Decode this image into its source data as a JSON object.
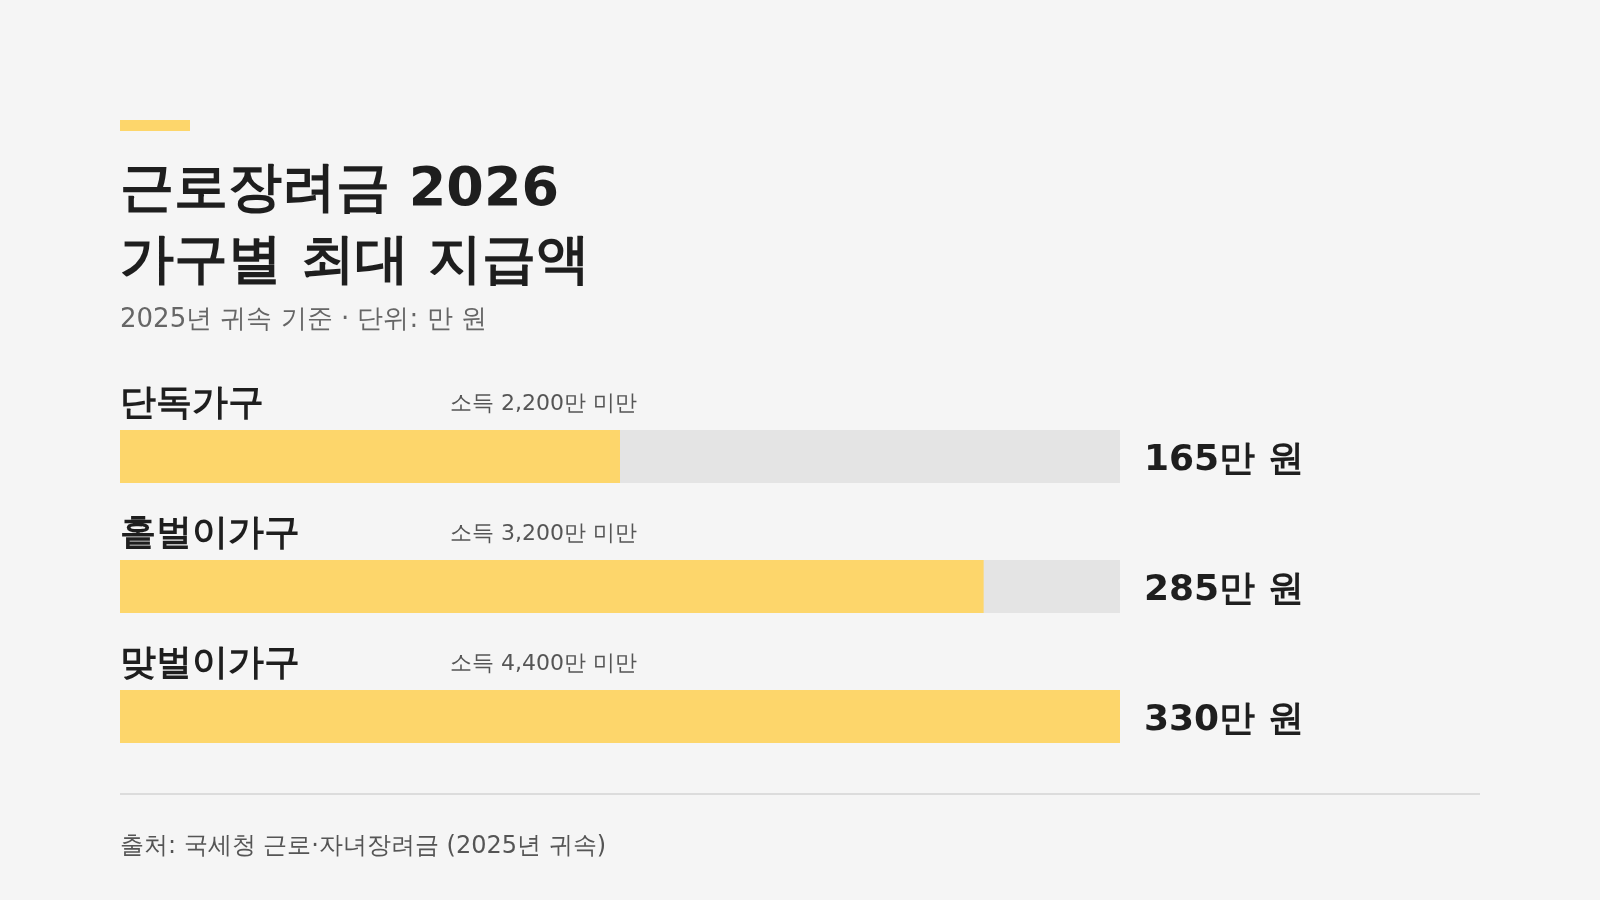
{
  "chart_data": {
    "type": "bar",
    "orientation": "horizontal",
    "title": "근로장려금 2026\n가구별 최대 지급액",
    "subtitle": "2025년 귀속 기준 · 단위: 만 원",
    "categories": [
      "단독가구",
      "홑벌이가구",
      "맞벌이가구"
    ],
    "values": [
      165,
      285,
      330
    ],
    "color": "#fdd66b",
    "value_labels": [
      "165만 원",
      "285만 원",
      "330만 원"
    ],
    "annotations": [
      "소득 2,200만 미만",
      "소득 3,200만 미만",
      "소득 4,400만 미만",
      "출처: 국세청 근로·자녀장려금 (2025년 귀속)"
    ]
  }
}
